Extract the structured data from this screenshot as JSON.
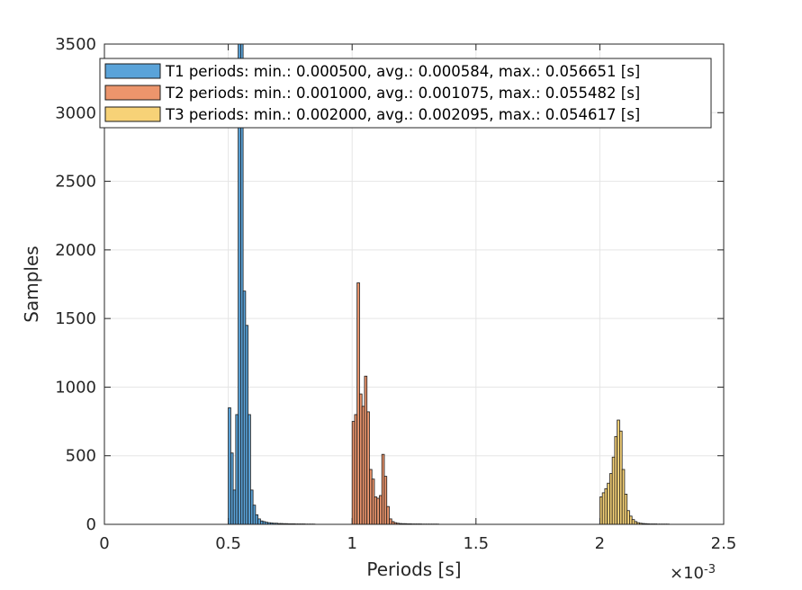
{
  "chart_data": {
    "type": "bar",
    "xlabel": "Periods [s]",
    "ylabel": "Samples",
    "xlim": [
      0,
      0.0025
    ],
    "ylim": [
      0,
      3500
    ],
    "x_ticks": [
      0,
      0.0005,
      0.001,
      0.0015,
      0.002,
      0.0025
    ],
    "x_tick_labels": [
      "0",
      "0.5",
      "1",
      "1.5",
      "2",
      "2.5"
    ],
    "x_exponent_label": "×10",
    "x_exponent_power": "-3",
    "y_ticks": [
      0,
      500,
      1000,
      1500,
      2000,
      2500,
      3000,
      3500
    ],
    "y_tick_labels": [
      "0",
      "500",
      "1000",
      "1500",
      "2000",
      "2500",
      "3000",
      "3500"
    ],
    "grid": true,
    "legend_position": "top",
    "bin_width": 1e-05,
    "series": [
      {
        "name": "T1 periods: min.: 0.000500, avg.: 0.000584, max.: 0.056651 [s]",
        "color": "#5aa3d9",
        "bin_start": 0.0005,
        "values": [
          850,
          520,
          250,
          800,
          3500,
          3500,
          1700,
          1450,
          800,
          250,
          140,
          70,
          40,
          25,
          20,
          15,
          12,
          10,
          8,
          8,
          6,
          6,
          5,
          5,
          4,
          4,
          4,
          3,
          3,
          3,
          3,
          2,
          2,
          2,
          2
        ]
      },
      {
        "name": "T2 periods: min.: 0.001000, avg.: 0.001075, max.: 0.055482 [s]",
        "color": "#ec956c",
        "bin_start": 0.001,
        "values": [
          750,
          800,
          1760,
          950,
          860,
          1080,
          820,
          400,
          330,
          200,
          190,
          210,
          510,
          350,
          130,
          40,
          20,
          12,
          8,
          6,
          5,
          5,
          4,
          4,
          3,
          3,
          3,
          3,
          2,
          2,
          2,
          2,
          2,
          2,
          2
        ]
      },
      {
        "name": "T3 periods: min.: 0.002000, avg.: 0.002095, max.: 0.054617 [s]",
        "color": "#f7d277",
        "bin_start": 0.002,
        "values": [
          200,
          230,
          260,
          300,
          370,
          490,
          640,
          760,
          680,
          400,
          220,
          100,
          60,
          35,
          20,
          12,
          8,
          6,
          5,
          4,
          3,
          3,
          3,
          2,
          2,
          2,
          2,
          2
        ]
      }
    ]
  }
}
